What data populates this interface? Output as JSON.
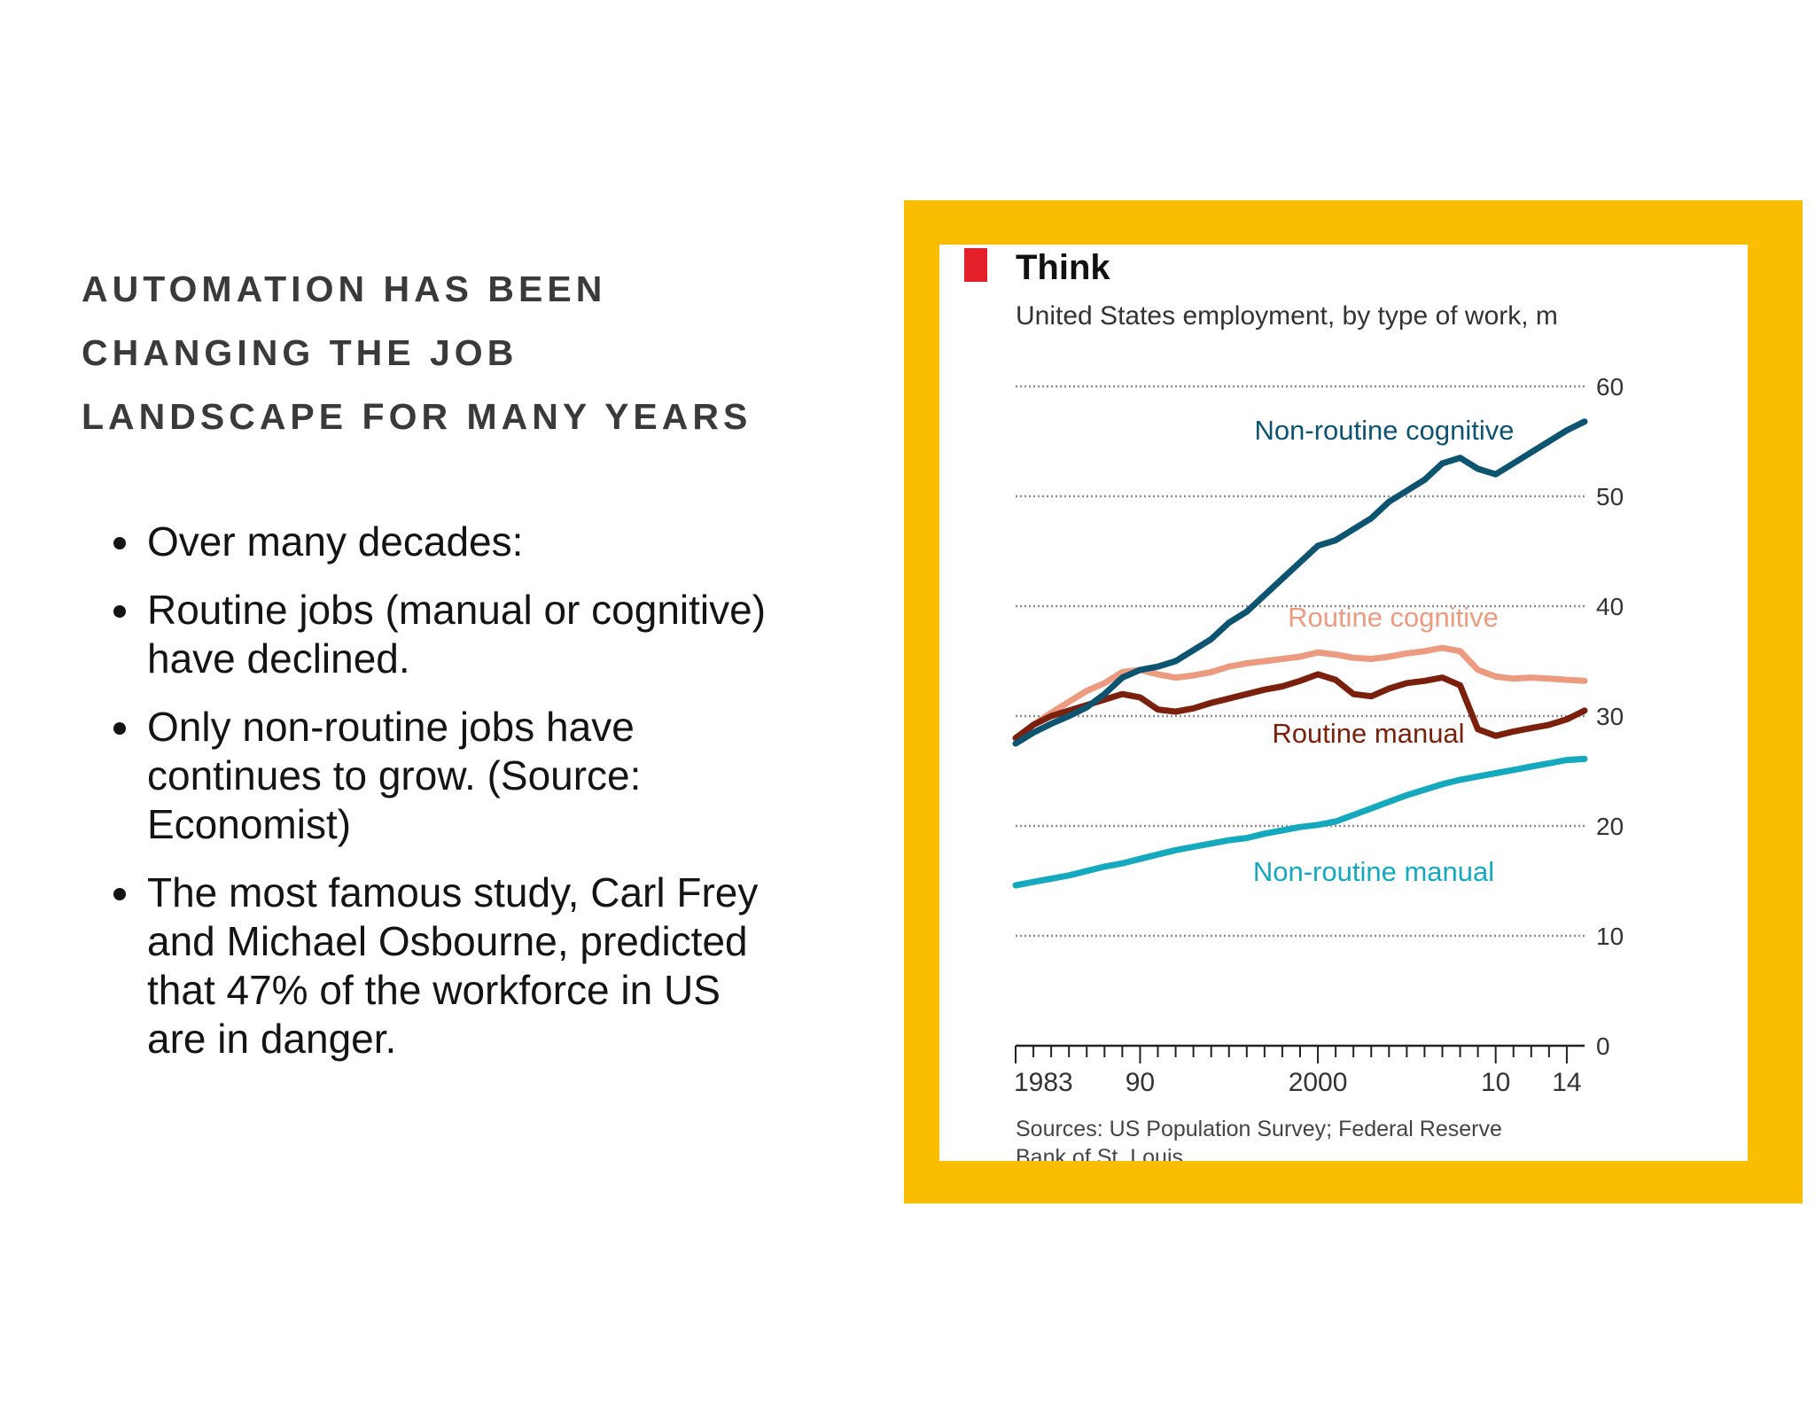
{
  "slide": {
    "title_lines": [
      "AUTOMATION HAS BEEN",
      "CHANGING THE JOB",
      "LANDSCAPE FOR MANY YEARS"
    ],
    "bullets": [
      "Over many decades:",
      "Routine jobs (manual or cognitive) have declined.",
      "Only non-routine jobs have continues to grow.  (Source: Economist)",
      "The most famous study, Carl Frey and Michael Osbourne, predicted that 47% of the workforce in US are in danger."
    ]
  },
  "colors": {
    "frame": "#fbbd00",
    "marker": "#e3202a",
    "grid": "#8a8a8a",
    "non_routine_cognitive": "#0d5470",
    "routine_cognitive": "#ec9b80",
    "routine_manual": "#7a200c",
    "non_routine_manual": "#14a9be"
  },
  "chart_data": {
    "type": "line",
    "title": "Think",
    "subtitle": "United States employment, by type of work, m",
    "source": "Sources: US Population Survey; Federal Reserve Bank of St. Louis",
    "xlim": [
      1983,
      2015
    ],
    "ylim": [
      0,
      60
    ],
    "y_ticks": [
      0,
      10,
      20,
      30,
      40,
      50,
      60
    ],
    "x_tick_labels": [
      {
        "year": 1983,
        "label": "1983"
      },
      {
        "year": 1990,
        "label": "90"
      },
      {
        "year": 2000,
        "label": "2000"
      },
      {
        "year": 2010,
        "label": "10"
      },
      {
        "year": 2014,
        "label": "14"
      }
    ],
    "grid": true,
    "series": [
      {
        "name": "Non-routine cognitive",
        "color_key": "non_routine_cognitive",
        "x": [
          1983,
          1984,
          1985,
          1986,
          1987,
          1988,
          1989,
          1990,
          1991,
          1992,
          1993,
          1994,
          1995,
          1996,
          1997,
          1998,
          1999,
          2000,
          2001,
          2002,
          2003,
          2004,
          2005,
          2006,
          2007,
          2008,
          2009,
          2010,
          2011,
          2012,
          2013,
          2014,
          2015
        ],
        "y": [
          27.5,
          28.5,
          29.3,
          30.0,
          30.8,
          32.0,
          33.5,
          34.2,
          34.5,
          35.0,
          36.0,
          37.0,
          38.5,
          39.5,
          41.0,
          42.5,
          44.0,
          45.5,
          46.0,
          47.0,
          48.0,
          49.5,
          50.5,
          51.5,
          53.0,
          53.5,
          52.5,
          52.0,
          53.0,
          54.0,
          55.0,
          56.0,
          56.8
        ]
      },
      {
        "name": "Routine cognitive",
        "color_key": "routine_cognitive",
        "x": [
          1983,
          1984,
          1985,
          1986,
          1987,
          1988,
          1989,
          1990,
          1991,
          1992,
          1993,
          1994,
          1995,
          1996,
          1997,
          1998,
          1999,
          2000,
          2001,
          2002,
          2003,
          2004,
          2005,
          2006,
          2007,
          2008,
          2009,
          2010,
          2011,
          2012,
          2013,
          2014,
          2015
        ],
        "y": [
          28.0,
          29.2,
          30.3,
          31.3,
          32.3,
          33.0,
          34.0,
          34.2,
          33.8,
          33.5,
          33.7,
          34.0,
          34.5,
          34.8,
          35.0,
          35.2,
          35.4,
          35.8,
          35.6,
          35.3,
          35.2,
          35.4,
          35.7,
          35.9,
          36.2,
          35.9,
          34.2,
          33.6,
          33.4,
          33.5,
          33.4,
          33.3,
          33.2
        ]
      },
      {
        "name": "Routine manual",
        "color_key": "routine_manual",
        "x": [
          1983,
          1984,
          1985,
          1986,
          1987,
          1988,
          1989,
          1990,
          1991,
          1992,
          1993,
          1994,
          1995,
          1996,
          1997,
          1998,
          1999,
          2000,
          2001,
          2002,
          2003,
          2004,
          2005,
          2006,
          2007,
          2008,
          2009,
          2010,
          2011,
          2012,
          2013,
          2014,
          2015
        ],
        "y": [
          28.0,
          29.2,
          30.0,
          30.5,
          31.0,
          31.5,
          32.0,
          31.7,
          30.6,
          30.4,
          30.7,
          31.2,
          31.6,
          32.0,
          32.4,
          32.7,
          33.2,
          33.8,
          33.3,
          32.0,
          31.8,
          32.5,
          33.0,
          33.2,
          33.5,
          32.8,
          28.8,
          28.2,
          28.6,
          28.9,
          29.2,
          29.7,
          30.5
        ]
      },
      {
        "name": "Non-routine manual",
        "color_key": "non_routine_manual",
        "x": [
          1983,
          1984,
          1985,
          1986,
          1987,
          1988,
          1989,
          1990,
          1991,
          1992,
          1993,
          1994,
          1995,
          1996,
          1997,
          1998,
          1999,
          2000,
          2001,
          2002,
          2003,
          2004,
          2005,
          2006,
          2007,
          2008,
          2009,
          2010,
          2011,
          2012,
          2013,
          2014,
          2015
        ],
        "y": [
          14.6,
          14.9,
          15.2,
          15.5,
          15.9,
          16.3,
          16.6,
          17.0,
          17.4,
          17.8,
          18.1,
          18.4,
          18.7,
          18.9,
          19.3,
          19.6,
          19.9,
          20.1,
          20.4,
          21.0,
          21.6,
          22.2,
          22.8,
          23.3,
          23.8,
          24.2,
          24.5,
          24.8,
          25.1,
          25.4,
          25.7,
          26.0,
          26.1
        ]
      }
    ]
  }
}
